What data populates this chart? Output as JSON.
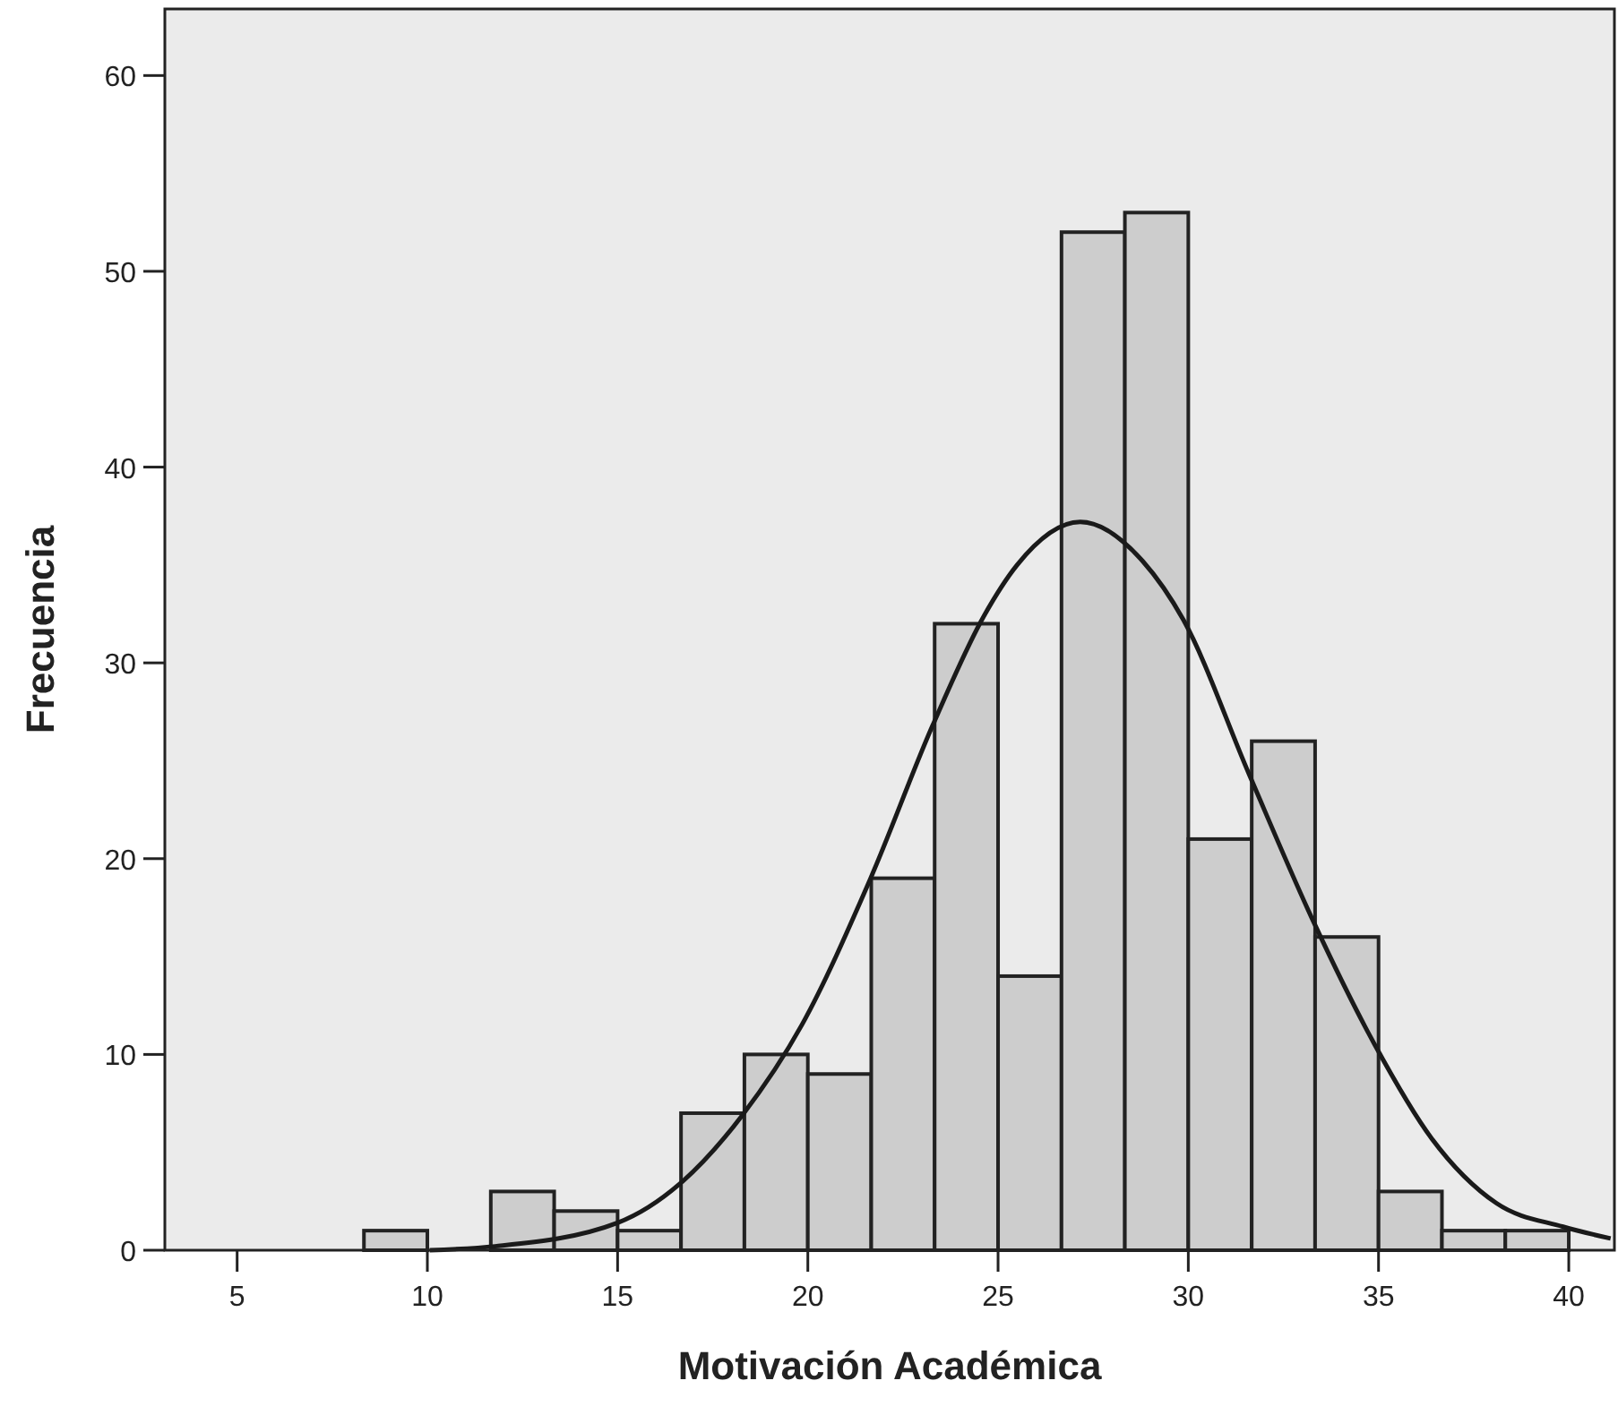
{
  "chart_data": {
    "type": "histogram",
    "xlabel": "Motivación Académica",
    "ylabel": "Frecuencia",
    "bins": [
      8.333,
      10,
      11.667,
      13.333,
      15,
      16.667,
      18.333,
      20,
      21.667,
      23.333,
      25,
      26.667,
      28.333,
      30,
      31.667,
      33.333,
      35,
      36.667,
      38.333,
      40
    ],
    "values": [
      1,
      0,
      3,
      2,
      1,
      7,
      10,
      9,
      19,
      32,
      14,
      52,
      53,
      21,
      26,
      16,
      3,
      1,
      1
    ],
    "color": "#cdcdcd",
    "series": [
      {
        "type": "line",
        "color": "#1a1a1a",
        "x": [
          10.06,
          11.78,
          15,
          16.64,
          18.28,
          19.84,
          21.65,
          23.28,
          24.63,
          25.5,
          27.16,
          28.8,
          29.87,
          31.6,
          33.31,
          34.9,
          36.4,
          38.1,
          39.85,
          41.1
        ],
        "values": [
          0,
          0.2,
          1.4,
          3.4,
          6.9,
          11.5,
          19,
          26.8,
          32.4,
          35.0,
          37.2,
          35.2,
          32.2,
          24.3,
          16.7,
          10.5,
          5.7,
          2.4,
          1.2,
          0.6
        ]
      }
    ],
    "xlim": [
      3.1,
      41.2
    ],
    "xticks": [
      5,
      10,
      15,
      20,
      25,
      30,
      35,
      40
    ],
    "ylim": [
      0,
      63.4
    ],
    "yticks": [
      0,
      10,
      20,
      30,
      40,
      50,
      60
    ],
    "grid": false
  }
}
